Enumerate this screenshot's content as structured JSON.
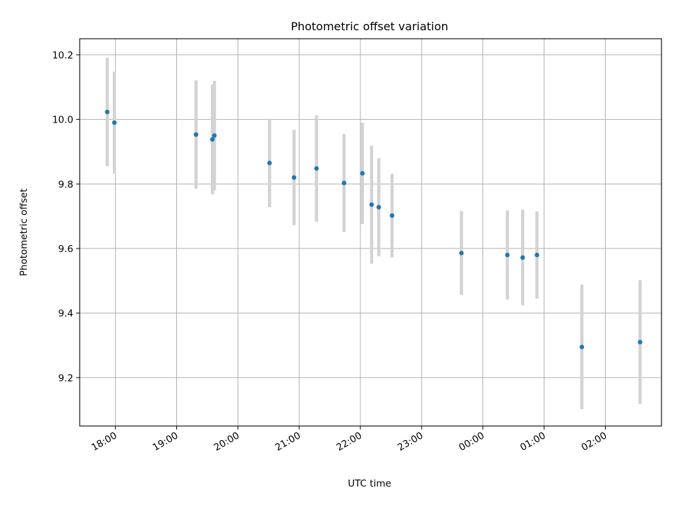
{
  "chart_data": {
    "type": "scatter",
    "title": "Photometric offset variation",
    "xlabel": "UTC time",
    "ylabel": "Photometric offset",
    "grid": true,
    "xlim": [
      "17:25",
      "02:55"
    ],
    "ylim": [
      9.05,
      10.25
    ],
    "x_tick_labels": [
      "18:00",
      "19:00",
      "20:00",
      "21:00",
      "22:00",
      "23:00",
      "00:00",
      "01:00",
      "02:00"
    ],
    "y_ticks": [
      9.2,
      9.4,
      9.6,
      9.8,
      10.0,
      10.2
    ],
    "y_tick_labels": [
      "9.2",
      "9.4",
      "9.6",
      "9.8",
      "10.0",
      "10.2"
    ],
    "colors": {
      "marker": "#1f77b4",
      "errorbar": "#d3d3d3",
      "grid": "#b0b0b0"
    },
    "points": [
      {
        "x": "17:52",
        "y": 10.023,
        "err": 0.168
      },
      {
        "x": "17:59",
        "y": 9.99,
        "err": 0.158
      },
      {
        "x": "19:19",
        "y": 9.953,
        "err": 0.168
      },
      {
        "x": "19:35",
        "y": 9.938,
        "err": 0.17
      },
      {
        "x": "19:37",
        "y": 9.95,
        "err": 0.17
      },
      {
        "x": "20:31",
        "y": 9.865,
        "err": 0.137
      },
      {
        "x": "20:55",
        "y": 9.82,
        "err": 0.148
      },
      {
        "x": "21:17",
        "y": 9.848,
        "err": 0.165
      },
      {
        "x": "21:44",
        "y": 9.803,
        "err": 0.152
      },
      {
        "x": "22:02",
        "y": 9.833,
        "err": 0.157
      },
      {
        "x": "22:11",
        "y": 9.736,
        "err": 0.183
      },
      {
        "x": "22:18",
        "y": 9.728,
        "err": 0.152
      },
      {
        "x": "22:31",
        "y": 9.702,
        "err": 0.13
      },
      {
        "x": "23:39",
        "y": 9.586,
        "err": 0.13
      },
      {
        "x": "00:24",
        "y": 9.58,
        "err": 0.138
      },
      {
        "x": "00:39",
        "y": 9.572,
        "err": 0.148
      },
      {
        "x": "00:53",
        "y": 9.58,
        "err": 0.135
      },
      {
        "x": "01:37",
        "y": 9.295,
        "err": 0.193
      },
      {
        "x": "02:34",
        "y": 9.31,
        "err": 0.192
      }
    ]
  }
}
